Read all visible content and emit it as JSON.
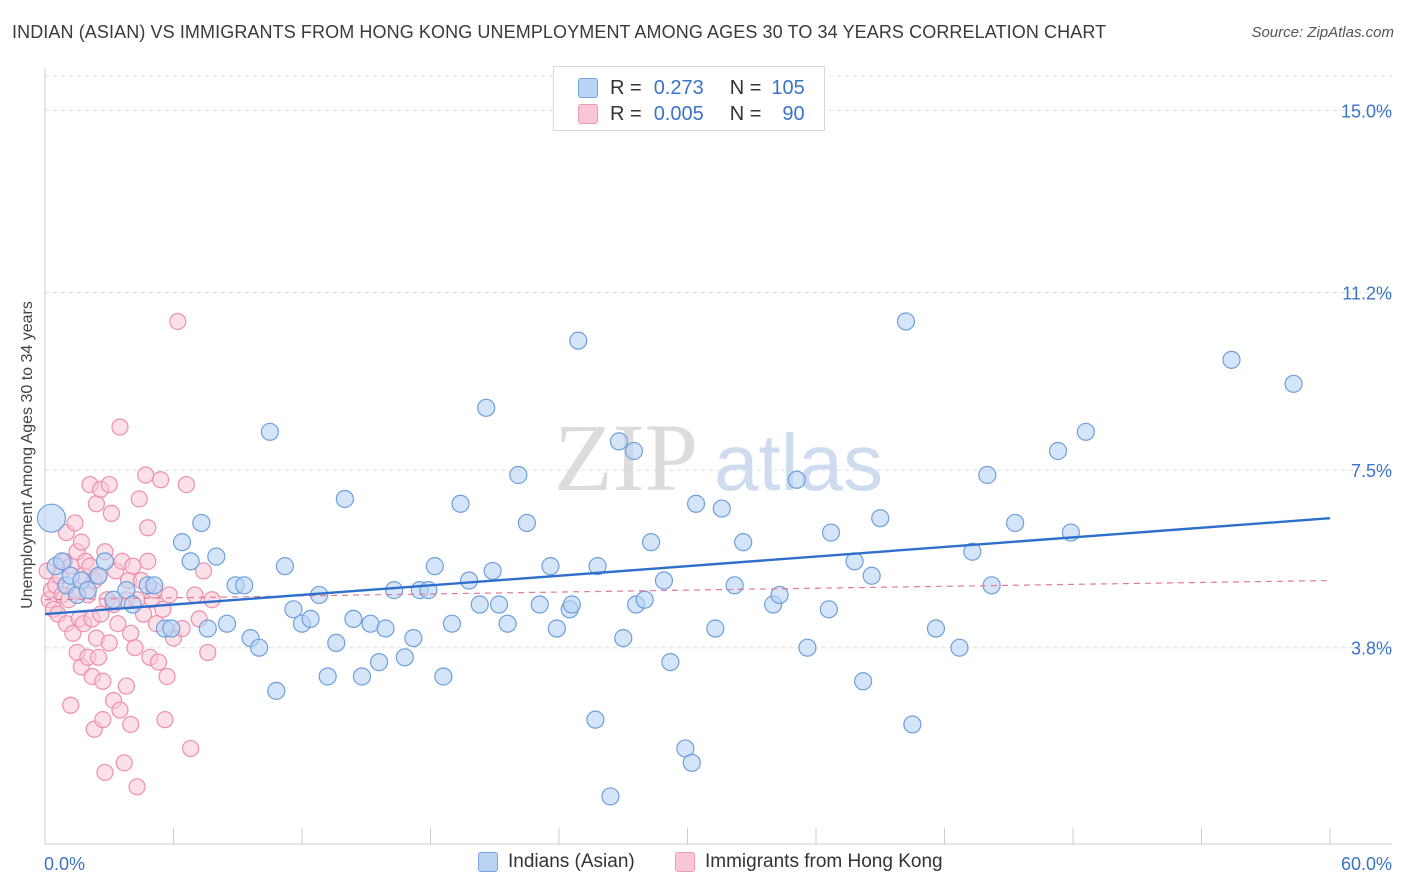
{
  "title": "INDIAN (ASIAN) VS IMMIGRANTS FROM HONG KONG UNEMPLOYMENT AMONG AGES 30 TO 34 YEARS CORRELATION CHART",
  "source": "Source: ZipAtlas.com",
  "watermark": {
    "zip": "ZIP",
    "atlas": "atlas"
  },
  "legend": {
    "r_label": "R =",
    "n_label": "N =",
    "rows": [
      {
        "r": "0.273",
        "n": "105",
        "fill": "#b9d3f5",
        "stroke": "#7aa6e0"
      },
      {
        "r": "0.005",
        "n": "90",
        "fill": "#f9c6d6",
        "stroke": "#ef9bb6"
      }
    ]
  },
  "colors": {
    "blue_fill": "#b9d3f5",
    "blue_stroke": "#6f9fdc",
    "blue_line": "#2f6fcc",
    "pink_fill": "#f9c6d6",
    "pink_stroke": "#ee8fae",
    "pink_line": "#e07a9a",
    "grid": "#dddddd",
    "axis_text": "#3a74c8"
  },
  "chart_data": {
    "type": "scatter",
    "title": "INDIAN (ASIAN) VS IMMIGRANTS FROM HONG KONG UNEMPLOYMENT AMONG AGES 30 TO 34 YEARS CORRELATION CHART",
    "xlabel": "",
    "ylabel": "Unemployment Among Ages 30 to 34 years",
    "xlim": [
      0,
      60
    ],
    "ylim": [
      0,
      15.8
    ],
    "x_tick_labels": [
      "0.0%",
      "60.0%"
    ],
    "y_ticks": [
      3.8,
      7.5,
      11.2,
      15.0
    ],
    "y_tick_labels": [
      "3.8%",
      "7.5%",
      "11.2%",
      "15.0%"
    ],
    "series": [
      {
        "name": "Indians (Asian)",
        "r": 0.273,
        "n": 105,
        "trend": {
          "x": [
            0,
            60
          ],
          "y": [
            4.5,
            6.5
          ]
        },
        "points": [
          [
            0.3,
            6.5
          ],
          [
            0.5,
            5.5
          ],
          [
            0.8,
            5.6
          ],
          [
            1.0,
            5.1
          ],
          [
            1.2,
            5.3
          ],
          [
            1.5,
            4.9
          ],
          [
            1.7,
            5.2
          ],
          [
            2.0,
            5.0
          ],
          [
            2.5,
            5.3
          ],
          [
            2.8,
            5.6
          ],
          [
            3.2,
            4.8
          ],
          [
            3.8,
            5.0
          ],
          [
            4.1,
            4.7
          ],
          [
            4.8,
            5.1
          ],
          [
            5.1,
            5.1
          ],
          [
            5.6,
            4.2
          ],
          [
            5.9,
            4.2
          ],
          [
            6.4,
            6.0
          ],
          [
            6.8,
            5.6
          ],
          [
            7.3,
            6.4
          ],
          [
            7.6,
            4.2
          ],
          [
            8.0,
            5.7
          ],
          [
            8.5,
            4.3
          ],
          [
            8.9,
            5.1
          ],
          [
            9.3,
            5.1
          ],
          [
            9.6,
            4.0
          ],
          [
            10.0,
            3.8
          ],
          [
            10.5,
            8.3
          ],
          [
            10.8,
            2.9
          ],
          [
            11.2,
            5.5
          ],
          [
            11.6,
            4.6
          ],
          [
            12.0,
            4.3
          ],
          [
            12.4,
            4.4
          ],
          [
            12.8,
            4.9
          ],
          [
            13.2,
            3.2
          ],
          [
            13.6,
            3.9
          ],
          [
            14.0,
            6.9
          ],
          [
            14.4,
            4.4
          ],
          [
            14.8,
            3.2
          ],
          [
            15.2,
            4.3
          ],
          [
            15.6,
            3.5
          ],
          [
            15.9,
            4.2
          ],
          [
            16.3,
            5.0
          ],
          [
            16.8,
            3.6
          ],
          [
            17.2,
            4.0
          ],
          [
            17.5,
            5.0
          ],
          [
            17.9,
            5.0
          ],
          [
            18.2,
            5.5
          ],
          [
            18.6,
            3.2
          ],
          [
            19.0,
            4.3
          ],
          [
            19.4,
            6.8
          ],
          [
            19.8,
            5.2
          ],
          [
            20.3,
            4.7
          ],
          [
            20.6,
            8.8
          ],
          [
            20.9,
            5.4
          ],
          [
            21.2,
            4.7
          ],
          [
            21.6,
            4.3
          ],
          [
            22.1,
            7.4
          ],
          [
            22.5,
            6.4
          ],
          [
            23.1,
            4.7
          ],
          [
            23.6,
            5.5
          ],
          [
            23.9,
            4.2
          ],
          [
            24.5,
            4.6
          ],
          [
            24.6,
            4.7
          ],
          [
            24.9,
            10.2
          ],
          [
            25.7,
            2.3
          ],
          [
            25.8,
            5.5
          ],
          [
            26.4,
            0.7
          ],
          [
            26.8,
            8.1
          ],
          [
            27.0,
            4.0
          ],
          [
            27.5,
            7.9
          ],
          [
            27.6,
            4.7
          ],
          [
            28.0,
            4.8
          ],
          [
            28.3,
            6.0
          ],
          [
            28.9,
            5.2
          ],
          [
            29.2,
            3.5
          ],
          [
            29.9,
            1.7
          ],
          [
            30.2,
            1.4
          ],
          [
            30.4,
            6.8
          ],
          [
            31.3,
            4.2
          ],
          [
            31.6,
            6.7
          ],
          [
            32.2,
            5.1
          ],
          [
            32.6,
            6.0
          ],
          [
            34.0,
            4.7
          ],
          [
            34.3,
            4.9
          ],
          [
            35.1,
            7.3
          ],
          [
            35.6,
            3.8
          ],
          [
            36.6,
            4.6
          ],
          [
            36.7,
            6.2
          ],
          [
            37.8,
            5.6
          ],
          [
            38.2,
            3.1
          ],
          [
            38.6,
            5.3
          ],
          [
            39.0,
            6.5
          ],
          [
            40.2,
            10.6
          ],
          [
            40.5,
            2.2
          ],
          [
            41.6,
            4.2
          ],
          [
            42.7,
            3.8
          ],
          [
            43.3,
            5.8
          ],
          [
            44.0,
            7.4
          ],
          [
            44.2,
            5.1
          ],
          [
            45.3,
            6.4
          ],
          [
            47.3,
            7.9
          ],
          [
            47.9,
            6.2
          ],
          [
            48.6,
            8.3
          ],
          [
            55.4,
            9.8
          ],
          [
            58.3,
            9.3
          ]
        ]
      },
      {
        "name": "Immigrants from Hong Kong",
        "r": 0.005,
        "n": 90,
        "trend": {
          "x": [
            0,
            60
          ],
          "y": [
            4.8,
            5.2
          ]
        },
        "points": [
          [
            0.1,
            5.4
          ],
          [
            0.2,
            4.8
          ],
          [
            0.3,
            5.0
          ],
          [
            0.4,
            4.6
          ],
          [
            0.5,
            5.1
          ],
          [
            0.6,
            4.5
          ],
          [
            0.7,
            5.3
          ],
          [
            0.8,
            4.9
          ],
          [
            0.9,
            5.6
          ],
          [
            1.0,
            6.2
          ],
          [
            1.0,
            4.3
          ],
          [
            1.1,
            4.8
          ],
          [
            1.2,
            5.5
          ],
          [
            1.2,
            2.6
          ],
          [
            1.3,
            4.1
          ],
          [
            1.4,
            6.4
          ],
          [
            1.4,
            5.0
          ],
          [
            1.5,
            3.7
          ],
          [
            1.5,
            5.8
          ],
          [
            1.6,
            4.4
          ],
          [
            1.7,
            6.0
          ],
          [
            1.7,
            3.4
          ],
          [
            1.8,
            5.3
          ],
          [
            1.8,
            4.3
          ],
          [
            1.9,
            5.6
          ],
          [
            2.0,
            4.9
          ],
          [
            2.0,
            3.6
          ],
          [
            2.1,
            5.5
          ],
          [
            2.1,
            7.2
          ],
          [
            2.2,
            4.4
          ],
          [
            2.2,
            3.2
          ],
          [
            2.3,
            5.2
          ],
          [
            2.3,
            2.1
          ],
          [
            2.4,
            6.8
          ],
          [
            2.4,
            4.0
          ],
          [
            2.5,
            3.6
          ],
          [
            2.5,
            5.3
          ],
          [
            2.6,
            7.1
          ],
          [
            2.6,
            4.5
          ],
          [
            2.7,
            3.1
          ],
          [
            2.7,
            2.3
          ],
          [
            2.8,
            5.8
          ],
          [
            2.8,
            1.2
          ],
          [
            2.9,
            4.8
          ],
          [
            3.0,
            7.2
          ],
          [
            3.0,
            3.9
          ],
          [
            3.1,
            6.6
          ],
          [
            3.2,
            4.7
          ],
          [
            3.2,
            2.7
          ],
          [
            3.3,
            5.4
          ],
          [
            3.4,
            4.3
          ],
          [
            3.5,
            8.4
          ],
          [
            3.5,
            2.5
          ],
          [
            3.6,
            5.6
          ],
          [
            3.7,
            1.4
          ],
          [
            3.8,
            4.8
          ],
          [
            3.8,
            3.0
          ],
          [
            3.9,
            5.2
          ],
          [
            4.0,
            4.1
          ],
          [
            4.0,
            2.2
          ],
          [
            4.1,
            5.5
          ],
          [
            4.2,
            3.8
          ],
          [
            4.3,
            0.9
          ],
          [
            4.3,
            4.8
          ],
          [
            4.4,
            6.9
          ],
          [
            4.5,
            5.2
          ],
          [
            4.6,
            4.5
          ],
          [
            4.7,
            7.4
          ],
          [
            4.8,
            6.3
          ],
          [
            4.8,
            5.6
          ],
          [
            4.9,
            3.6
          ],
          [
            5.0,
            4.8
          ],
          [
            5.1,
            5.0
          ],
          [
            5.2,
            4.3
          ],
          [
            5.3,
            3.5
          ],
          [
            5.4,
            7.3
          ],
          [
            5.5,
            4.6
          ],
          [
            5.6,
            2.3
          ],
          [
            5.7,
            3.2
          ],
          [
            5.8,
            4.9
          ],
          [
            6.0,
            4.0
          ],
          [
            6.2,
            10.6
          ],
          [
            6.4,
            4.2
          ],
          [
            6.6,
            7.2
          ],
          [
            6.8,
            1.7
          ],
          [
            7.0,
            4.9
          ],
          [
            7.2,
            4.4
          ],
          [
            7.4,
            5.4
          ],
          [
            7.6,
            3.7
          ],
          [
            7.8,
            4.8
          ]
        ]
      }
    ]
  },
  "bottom_legend": [
    "Indians (Asian)",
    "Immigrants from Hong Kong"
  ]
}
